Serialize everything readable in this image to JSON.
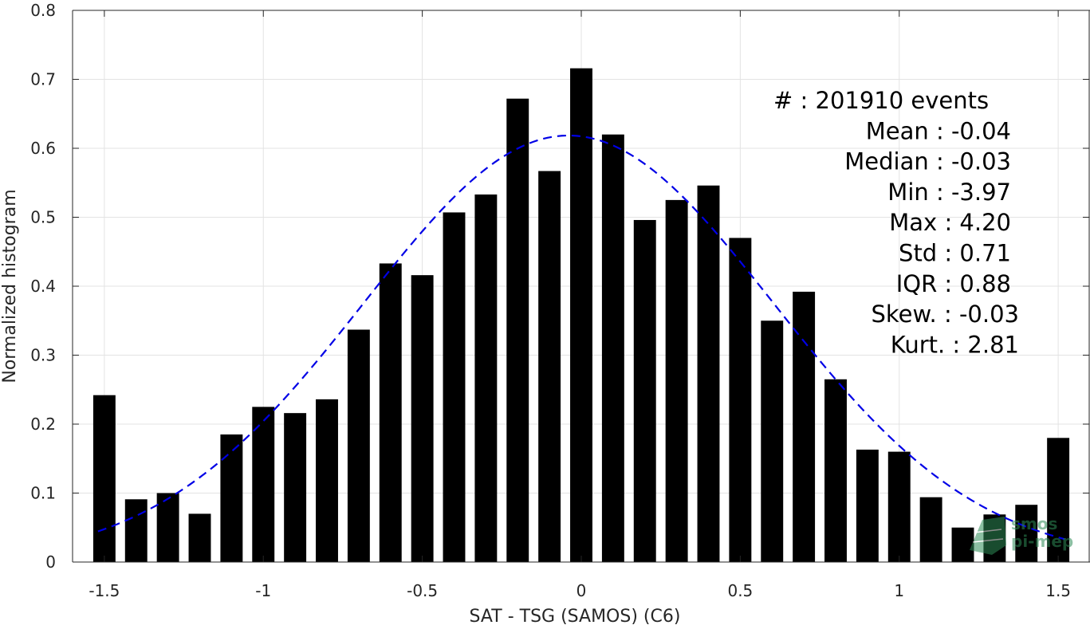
{
  "chart_data": {
    "type": "bar",
    "title": "",
    "xlabel": "SAT - TSG (SAMOS) (C6)",
    "ylabel": "Normalized histogram",
    "xlim": [
      -1.6,
      1.6
    ],
    "ylim": [
      0,
      0.8
    ],
    "x_ticks": [
      -1.5,
      -1,
      -0.5,
      0,
      0.5,
      1,
      1.5
    ],
    "x_tick_labels": [
      "-1.5",
      "-1",
      "-0.5",
      "0",
      "0.5",
      "1",
      "1.5"
    ],
    "y_ticks": [
      0,
      0.1,
      0.2,
      0.3,
      0.4,
      0.5,
      0.6,
      0.7,
      0.8
    ],
    "y_tick_labels": [
      "0",
      "0.1",
      "0.2",
      "0.3",
      "0.4",
      "0.5",
      "0.6",
      "0.7",
      "0.8"
    ],
    "grid": true,
    "bin_width": 0.1,
    "x": [
      -1.5,
      -1.4,
      -1.3,
      -1.2,
      -1.1,
      -1.0,
      -0.9,
      -0.8,
      -0.7,
      -0.6,
      -0.5,
      -0.4,
      -0.3,
      -0.2,
      -0.1,
      0.0,
      0.1,
      0.2,
      0.3,
      0.4,
      0.5,
      0.6,
      0.7,
      0.8,
      0.9,
      1.0,
      1.1,
      1.2,
      1.3,
      1.4,
      1.5
    ],
    "values": [
      0.242,
      0.091,
      0.1,
      0.07,
      0.185,
      0.225,
      0.216,
      0.236,
      0.337,
      0.433,
      0.416,
      0.507,
      0.533,
      0.672,
      0.567,
      0.716,
      0.62,
      0.496,
      0.525,
      0.546,
      0.47,
      0.35,
      0.392,
      0.265,
      0.163,
      0.16,
      0.094,
      0.05,
      0.069,
      0.083,
      0.18
    ],
    "bar_color": "#000000",
    "fit_curve": {
      "style": "dashed",
      "color": "#0000e6",
      "mean": -0.04,
      "std": 0.645,
      "x_range": [
        -1.52,
        1.52
      ]
    },
    "stats_box": {
      "position": "top-right",
      "lines": [
        "#  : 201910 events",
        "Mean : -0.04",
        "Median : -0.03",
        "Min : -3.97",
        "Max : 4.20",
        "Std : 0.71",
        "IQR : 0.88",
        "Skew. : -0.03",
        "Kurt. : 2.81"
      ]
    },
    "watermark": {
      "text_lines": [
        "smos",
        "pi-mep"
      ],
      "position": "bottom-right",
      "color": "#2e8b57"
    }
  }
}
